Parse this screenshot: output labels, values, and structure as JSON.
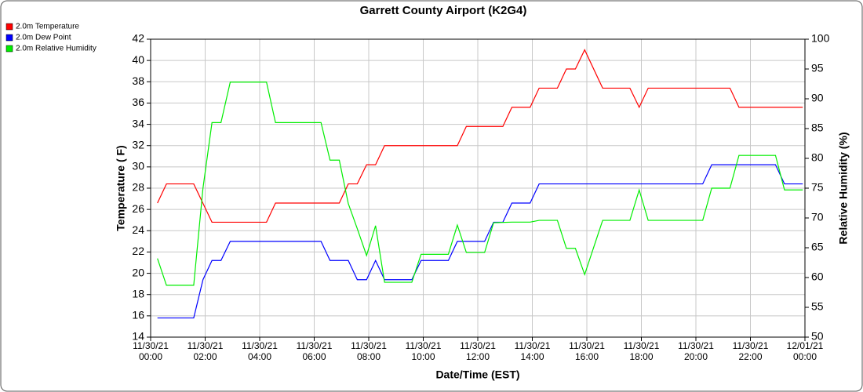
{
  "chart_data": {
    "type": "line",
    "title": "Garrett County Airport (K2G4)",
    "xlabel": "Date/Time (EST)",
    "ylabel": "Temperature ( F)",
    "y2label": "Relative Humidity (%)",
    "xlim": [
      0,
      24
    ],
    "xticks": [
      {
        "value": 0,
        "label": [
          "11/30/21",
          "00:00"
        ]
      },
      {
        "value": 2,
        "label": [
          "11/30/21",
          "02:00"
        ]
      },
      {
        "value": 4,
        "label": [
          "11/30/21",
          "04:00"
        ]
      },
      {
        "value": 6,
        "label": [
          "11/30/21",
          "06:00"
        ]
      },
      {
        "value": 8,
        "label": [
          "11/30/21",
          "08:00"
        ]
      },
      {
        "value": 10,
        "label": [
          "11/30/21",
          "10:00"
        ]
      },
      {
        "value": 12,
        "label": [
          "11/30/21",
          "12:00"
        ]
      },
      {
        "value": 14,
        "label": [
          "11/30/21",
          "14:00"
        ]
      },
      {
        "value": 16,
        "label": [
          "11/30/21",
          "16:00"
        ]
      },
      {
        "value": 18,
        "label": [
          "11/30/21",
          "18:00"
        ]
      },
      {
        "value": 20,
        "label": [
          "11/30/21",
          "20:00"
        ]
      },
      {
        "value": 22,
        "label": [
          "11/30/21",
          "22:00"
        ]
      },
      {
        "value": 24,
        "label": [
          "12/01/21",
          "00:00"
        ]
      }
    ],
    "ylim": [
      14,
      42
    ],
    "yticks": [
      14,
      16,
      18,
      20,
      22,
      24,
      26,
      28,
      30,
      32,
      34,
      36,
      38,
      40,
      42
    ],
    "y2lim": [
      50,
      100
    ],
    "y2ticks": [
      50,
      55,
      60,
      65,
      70,
      75,
      80,
      85,
      90,
      95,
      100
    ],
    "grid": true,
    "legend": "top-left",
    "series": [
      {
        "name": "2.0m Temperature",
        "color": "#ff0000",
        "x": [
          0.25,
          0.58,
          1.58,
          2.25,
          4.25,
          4.58,
          6.92,
          7.25,
          7.58,
          7.92,
          8.25,
          8.58,
          11.25,
          11.58,
          12.92,
          13.25,
          13.92,
          14.25,
          14.92,
          15.25,
          15.58,
          15.92,
          16.58,
          17.58,
          17.92,
          18.25,
          21.25,
          21.58,
          23.92
        ],
        "values": [
          26.6,
          28.4,
          28.4,
          24.8,
          24.8,
          26.6,
          26.6,
          28.4,
          28.4,
          30.2,
          30.2,
          32,
          32,
          33.8,
          33.8,
          35.6,
          35.6,
          37.4,
          37.4,
          39.2,
          39.2,
          41,
          37.4,
          37.4,
          35.6,
          37.4,
          37.4,
          35.6,
          35.6
        ]
      },
      {
        "name": "2.0m Dew Point",
        "color": "#0000ff",
        "x": [
          0.25,
          1.58,
          1.92,
          2.25,
          2.58,
          2.92,
          6.25,
          6.58,
          7.25,
          7.58,
          7.92,
          8.25,
          8.58,
          9.58,
          9.92,
          10.92,
          11.25,
          12.25,
          12.58,
          12.92,
          13.25,
          13.92,
          14.25,
          20.25,
          20.58,
          22.92,
          23.25,
          23.92
        ],
        "values": [
          15.8,
          15.8,
          19.4,
          21.2,
          21.2,
          23,
          23,
          21.2,
          21.2,
          19.4,
          19.4,
          21.2,
          19.4,
          19.4,
          21.2,
          21.2,
          23,
          23,
          24.8,
          24.8,
          26.6,
          26.6,
          28.4,
          28.4,
          30.2,
          30.2,
          28.4,
          28.4
        ]
      },
      {
        "name": "2.0m Relative Humidity",
        "color": "#00ee00",
        "axis": "y2",
        "x": [
          0.25,
          0.58,
          1.58,
          1.92,
          2.25,
          2.58,
          2.92,
          4.25,
          4.58,
          6.25,
          6.58,
          6.92,
          7.25,
          7.58,
          7.92,
          8.25,
          8.58,
          9.58,
          9.92,
          10.92,
          11.25,
          11.58,
          12.25,
          12.58,
          13.25,
          13.92,
          14.25,
          14.92,
          15.25,
          15.58,
          15.92,
          16.58,
          17.58,
          17.92,
          18.25,
          20.25,
          20.58,
          21.25,
          21.58,
          22.92,
          23.25,
          23.92
        ],
        "values": [
          63.2,
          58.7,
          58.7,
          75,
          86,
          86,
          92.8,
          92.8,
          86,
          86,
          79.7,
          79.7,
          72.4,
          68.2,
          63.7,
          68.7,
          59.2,
          59.2,
          63.9,
          63.9,
          68.8,
          64.2,
          64.2,
          69.2,
          69.3,
          69.3,
          69.6,
          69.6,
          64.9,
          64.9,
          60.5,
          69.6,
          69.6,
          74.7,
          69.6,
          69.6,
          75,
          75,
          80.5,
          80.5,
          74.7,
          74.7
        ]
      }
    ]
  }
}
